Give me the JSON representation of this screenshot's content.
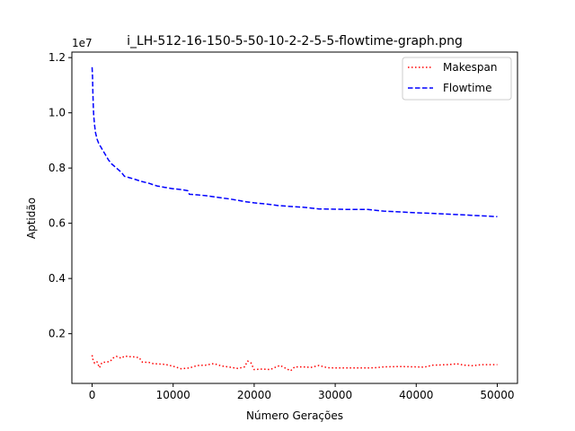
{
  "chart_data": {
    "type": "line",
    "title": "i_LH-512-16-150-5-50-10-2-2-5-5-flowtime-graph.png",
    "xlabel": "Número Gerações",
    "ylabel": "Aptidão",
    "y_offset_label": "1e7",
    "xlim": [
      -2500,
      52500
    ],
    "ylim": [
      0.02,
      1.22
    ],
    "x_ticks": [
      0,
      10000,
      20000,
      30000,
      40000,
      50000
    ],
    "x_tick_labels": [
      "0",
      "10000",
      "20000",
      "30000",
      "40000",
      "50000"
    ],
    "y_ticks": [
      0.2,
      0.4,
      0.6,
      0.8,
      1.0,
      1.2
    ],
    "y_tick_labels": [
      "0.2",
      "0.4",
      "0.6",
      "0.8",
      "1.0",
      "1.2"
    ],
    "grid": false,
    "legend_position": "top-right",
    "series": [
      {
        "name": "Makespan",
        "color": "#ff0000",
        "style": "dotted",
        "x": [
          0,
          100,
          300,
          600,
          900,
          1200,
          1800,
          2200,
          2600,
          3000,
          3600,
          4000,
          4600,
          5200,
          5800,
          6200,
          7000,
          7500,
          8000,
          9000,
          10000,
          11000,
          12000,
          13000,
          14000,
          15000,
          16000,
          17000,
          18000,
          18800,
          19200,
          19600,
          20000,
          21000,
          22000,
          22700,
          23200,
          24000,
          24500,
          25000,
          26000,
          27000,
          28000,
          29000,
          30000,
          32000,
          34000,
          35000,
          36000,
          38000,
          40000,
          41000,
          42000,
          44000,
          45000,
          46000,
          47000,
          48000,
          50000
        ],
        "y": [
          0.122,
          0.107,
          0.093,
          0.098,
          0.077,
          0.095,
          0.098,
          0.099,
          0.112,
          0.118,
          0.111,
          0.119,
          0.117,
          0.116,
          0.113,
          0.097,
          0.096,
          0.092,
          0.091,
          0.089,
          0.082,
          0.073,
          0.076,
          0.085,
          0.086,
          0.092,
          0.083,
          0.079,
          0.074,
          0.08,
          0.101,
          0.094,
          0.07,
          0.072,
          0.07,
          0.08,
          0.085,
          0.073,
          0.066,
          0.08,
          0.08,
          0.078,
          0.085,
          0.077,
          0.076,
          0.076,
          0.076,
          0.077,
          0.08,
          0.081,
          0.08,
          0.079,
          0.086,
          0.088,
          0.091,
          0.086,
          0.084,
          0.088,
          0.088
        ]
      },
      {
        "name": "Flowtime",
        "color": "#0000ff",
        "style": "dashed",
        "x": [
          0,
          50,
          100,
          150,
          200,
          300,
          400,
          600,
          800,
          1000,
          1300,
          1600,
          2000,
          2400,
          2800,
          3200,
          3600,
          4000,
          4600,
          5200,
          6000,
          7000,
          8000,
          9000,
          10000,
          11000,
          11800,
          12000,
          13000,
          14000,
          15000,
          16000,
          17000,
          18000,
          19000,
          20000,
          21000,
          22000,
          23000,
          24000,
          25000,
          26000,
          27000,
          28000,
          30000,
          32000,
          34000,
          35000,
          36000,
          38000,
          40000,
          42000,
          44000,
          46000,
          48000,
          50000
        ],
        "y": [
          1.165,
          1.13,
          1.07,
          1.02,
          0.99,
          0.955,
          0.93,
          0.905,
          0.89,
          0.88,
          0.865,
          0.85,
          0.83,
          0.815,
          0.805,
          0.795,
          0.785,
          0.77,
          0.765,
          0.76,
          0.752,
          0.745,
          0.735,
          0.73,
          0.725,
          0.722,
          0.718,
          0.705,
          0.703,
          0.7,
          0.696,
          0.692,
          0.688,
          0.683,
          0.678,
          0.674,
          0.671,
          0.668,
          0.664,
          0.662,
          0.66,
          0.658,
          0.655,
          0.652,
          0.651,
          0.65,
          0.65,
          0.647,
          0.644,
          0.641,
          0.638,
          0.636,
          0.633,
          0.63,
          0.627,
          0.624
        ]
      }
    ]
  }
}
